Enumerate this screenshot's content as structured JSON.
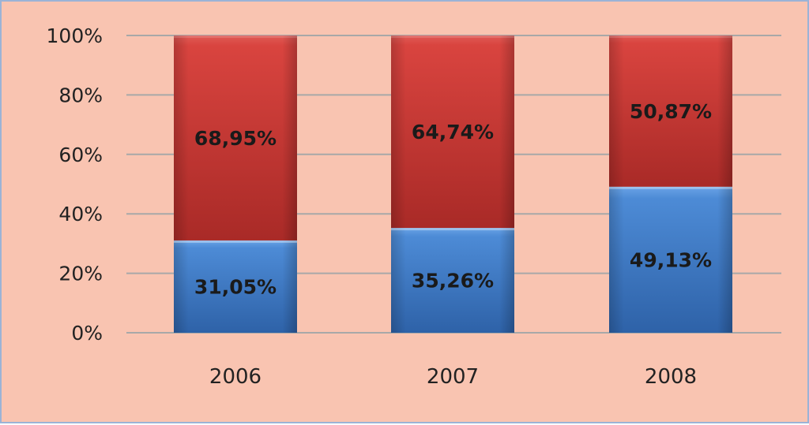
{
  "chart_data": {
    "type": "bar",
    "stacked": true,
    "percent_stacked": true,
    "categories": [
      "2006",
      "2007",
      "2008"
    ],
    "series": [
      {
        "values": [
          31.05,
          35.26,
          49.13
        ],
        "labels": [
          "31,05%",
          "35,26%",
          "49,13%"
        ],
        "color": "#4a86d0"
      },
      {
        "values": [
          68.95,
          64.74,
          50.87
        ],
        "labels": [
          "68,95%",
          "64,74%",
          "50,87%"
        ],
        "color": "#d43c38"
      }
    ],
    "y_ticks": [
      "0%",
      "20%",
      "40%",
      "60%",
      "80%",
      "100%"
    ],
    "ylim": [
      0,
      100
    ],
    "grid": true,
    "legend": "none",
    "title": "",
    "xlabel": "",
    "ylabel": ""
  },
  "colors": {
    "background": "#f9c4b1",
    "frame_border": "#9bb3d6",
    "gridline": "#a8a8a8"
  }
}
